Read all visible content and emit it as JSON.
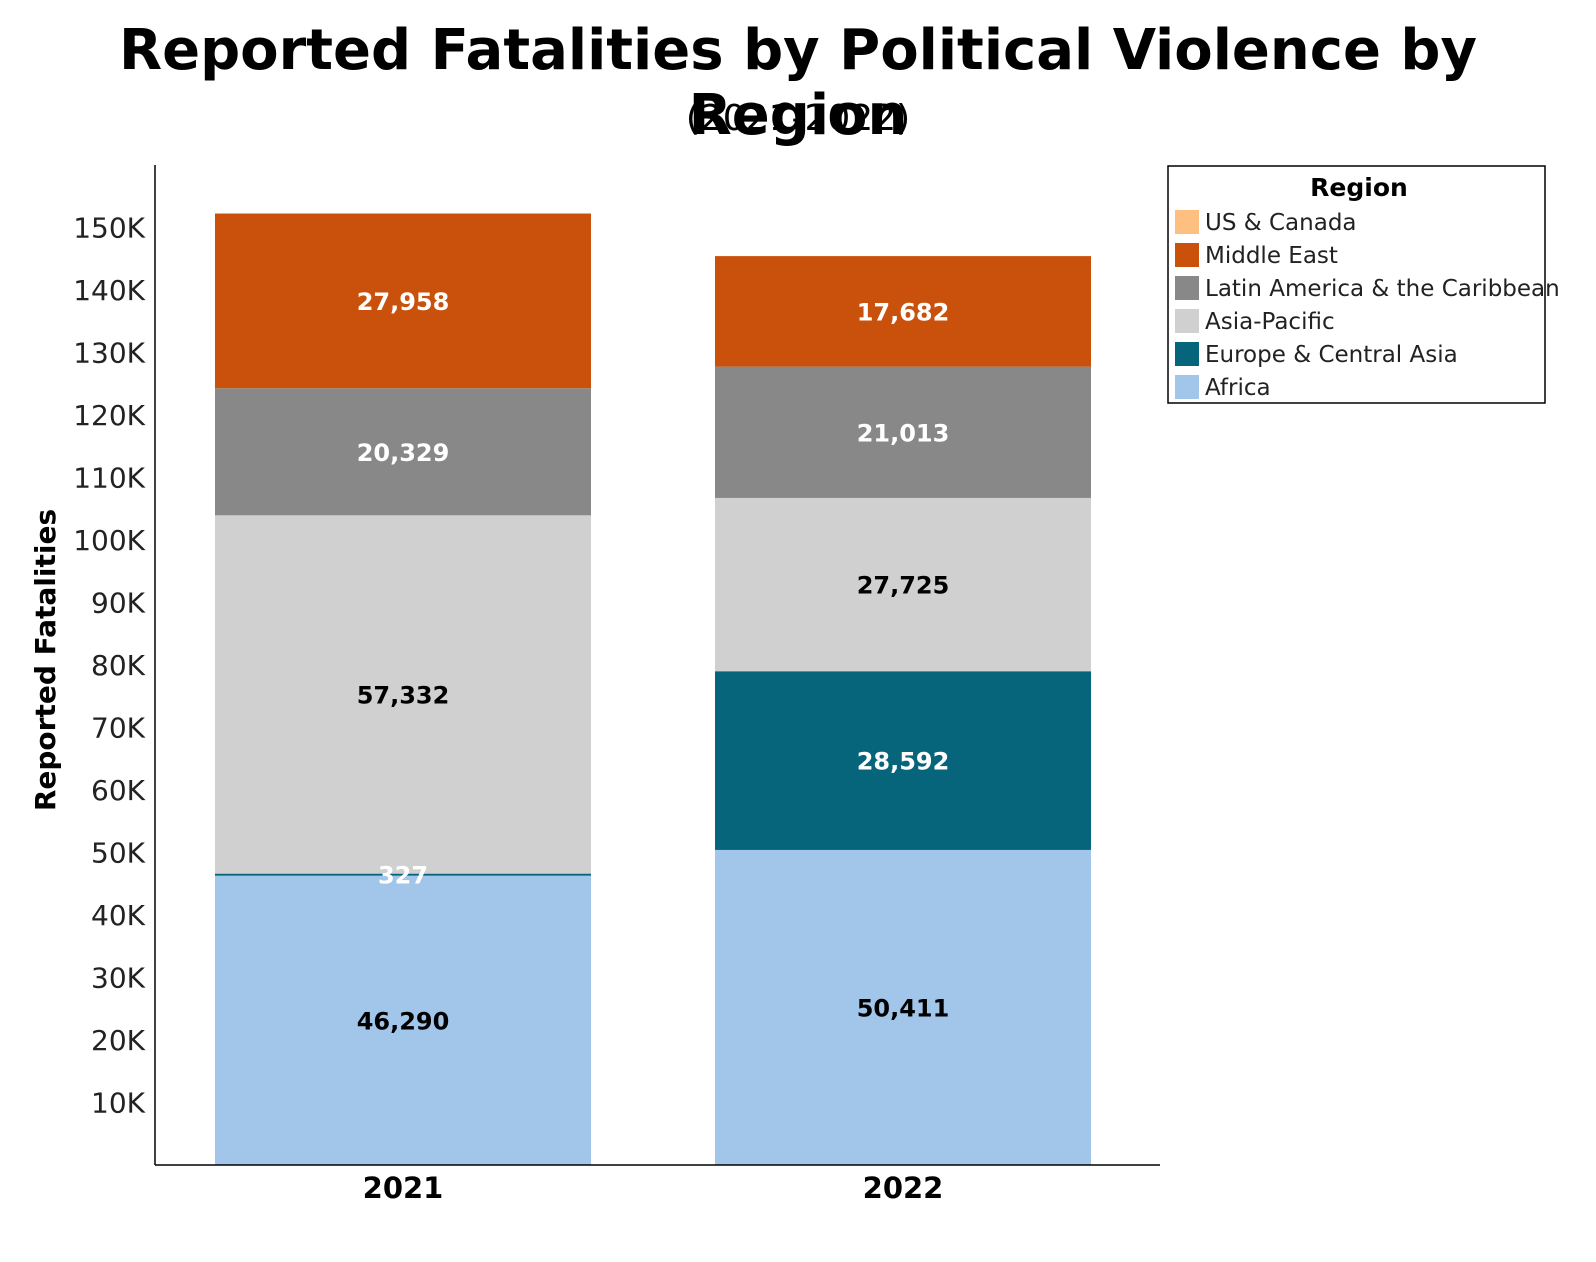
{
  "chart_data": {
    "type": "bar",
    "stacked": true,
    "title": "Reported Fatalities by Political Violence by Region",
    "subtitle": "(2021-2022)",
    "xlabel": "",
    "ylabel": "Reported Fatalities",
    "ylim": [
      0,
      160000
    ],
    "yticks": [
      10000,
      20000,
      30000,
      40000,
      50000,
      60000,
      70000,
      80000,
      90000,
      100000,
      110000,
      120000,
      130000,
      140000,
      150000
    ],
    "ytick_labels": [
      "10K",
      "20K",
      "30K",
      "40K",
      "50K",
      "60K",
      "70K",
      "80K",
      "90K",
      "100K",
      "110K",
      "120K",
      "130K",
      "140K",
      "150K"
    ],
    "categories": [
      "2021",
      "2022"
    ],
    "series": [
      {
        "name": "Africa",
        "color": "#a1c6ea",
        "label_color": "#000000",
        "values": [
          46290,
          50411
        ],
        "labels": [
          "46,290",
          "50,411"
        ]
      },
      {
        "name": "Europe & Central Asia",
        "color": "#07657b",
        "label_color": "#ffffff",
        "values": [
          327,
          28592
        ],
        "labels": [
          "327",
          "28,592"
        ]
      },
      {
        "name": "Asia-Pacific",
        "color": "#d0d0d0",
        "label_color": "#000000",
        "values": [
          57332,
          27725
        ],
        "labels": [
          "57,332",
          "27,725"
        ]
      },
      {
        "name": "Latin America & the Caribbean",
        "color": "#888888",
        "label_color": "#ffffff",
        "values": [
          20329,
          21013
        ],
        "labels": [
          "20,329",
          "21,013"
        ]
      },
      {
        "name": "Middle East",
        "color": "#c9510c",
        "label_color": "#ffffff",
        "values": [
          27958,
          17682
        ],
        "labels": [
          "27,958",
          "17,682"
        ]
      },
      {
        "name": "US & Canada",
        "color": "#ffbf80",
        "label_color": "#000000",
        "values": [
          null,
          null
        ],
        "labels": [
          "",
          ""
        ]
      }
    ],
    "legend": {
      "title": "Region",
      "placement": "top-right",
      "items": [
        "US & Canada",
        "Middle East",
        "Latin America & the Caribbean",
        "Asia-Pacific",
        "Europe & Central Asia",
        "Africa"
      ]
    },
    "grid": false
  }
}
